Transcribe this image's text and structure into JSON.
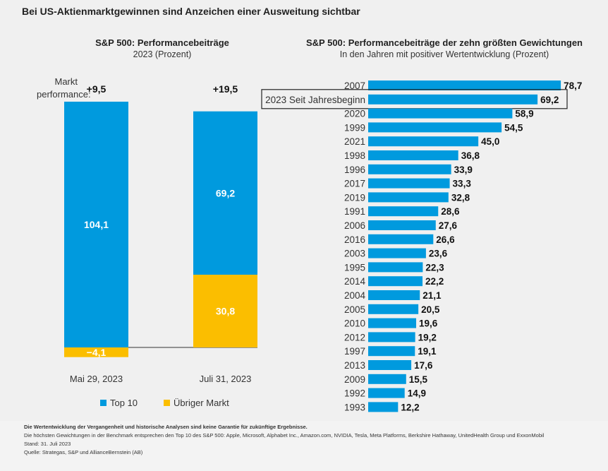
{
  "title": "Bei US-Aktienmarktgewinnen sind Anzeichen einer Ausweitung sichtbar",
  "chart_data": [
    {
      "type": "bar",
      "stacked": true,
      "title": "S&P 500: Performancebeiträge",
      "subtitle": "2023 (Prozent)",
      "market_label": "Markt performance:",
      "categories": [
        "Mai 29, 2023",
        "Juli 31, 2023"
      ],
      "market_performance": [
        "+9,5",
        "+19,5"
      ],
      "series": [
        {
          "name": "Top 10",
          "color": "#009ade",
          "values": [
            104.1,
            69.2
          ],
          "labels": [
            "104,1",
            "69,2"
          ]
        },
        {
          "name": "Übriger Markt",
          "color": "#fbbe00",
          "values": [
            -4.1,
            30.8
          ],
          "labels": [
            "−4,1",
            "30,8"
          ]
        }
      ],
      "legend": "bottom"
    },
    {
      "type": "bar",
      "orientation": "horizontal",
      "title": "S&P 500: Performancebeiträge der zehn größten Gewichtungen",
      "subtitle": "In den Jahren mit positiver Wertentwicklung (Prozent)",
      "color": "#009ade",
      "highlight": "2023 Seit Jahresbeginn",
      "categories": [
        "2007",
        "2023 Seit Jahresbeginn",
        "2020",
        "1999",
        "2021",
        "1998",
        "1996",
        "2017",
        "2019",
        "1991",
        "2006",
        "2016",
        "2003",
        "1995",
        "2014",
        "2004",
        "2005",
        "2010",
        "2012",
        "1997",
        "2013",
        "2009",
        "1992",
        "1993"
      ],
      "values": [
        78.7,
        69.2,
        58.9,
        54.5,
        45.0,
        36.8,
        33.9,
        33.3,
        32.8,
        28.6,
        27.6,
        26.6,
        23.6,
        22.3,
        22.2,
        21.1,
        20.5,
        19.6,
        19.2,
        19.1,
        17.6,
        15.5,
        14.9,
        12.2
      ],
      "labels": [
        "78,7",
        "69,2",
        "58,9",
        "54,5",
        "45,0",
        "36,8",
        "33,9",
        "33,3",
        "32,8",
        "28,6",
        "27,6",
        "26,6",
        "23,6",
        "22,3",
        "22,2",
        "21,1",
        "20,5",
        "19,6",
        "19,2",
        "19,1",
        "17,6",
        "15,5",
        "14,9",
        "12,2"
      ]
    }
  ],
  "footnotes": {
    "disclaimer": "Die Wertentwicklung der Vergangenheit und historische Analysen sind keine Garantie für zukünftige Ergebnisse.",
    "note": "Die höchsten Gewichtungen in der Benchmark entsprechen den Top 10 des S&P 500: Apple, Microsoft, Alphabet Inc., Amazon.com, NVIDIA, Tesla, Meta Platforms, Berkshire Hathaway, UnitedHealth Group und ExxonMobil",
    "date": "Stand: 31. Juli 2023",
    "source": "Quelle: Strategas, S&P und AllianceBernstein (AB)"
  }
}
